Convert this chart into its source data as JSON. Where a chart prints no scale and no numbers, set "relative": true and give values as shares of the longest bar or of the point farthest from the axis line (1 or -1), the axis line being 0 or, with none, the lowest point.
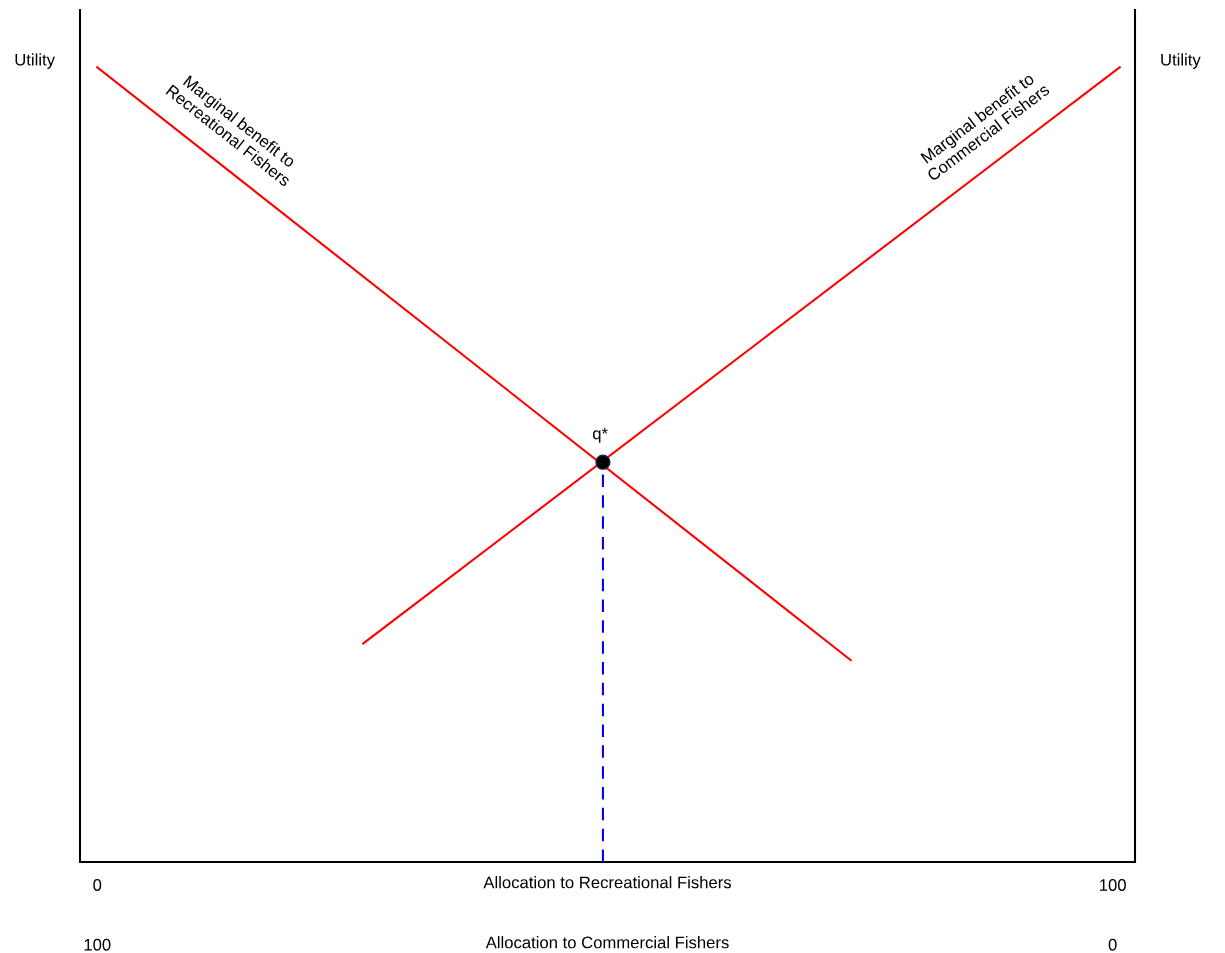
{
  "chart_data": {
    "type": "line",
    "relative": true,
    "xlabel": "Allocation to Recreational Fishers",
    "x2label": "Allocation to Commercial Fishers",
    "ylabel": "Utility",
    "y2label": "Utility",
    "xlim": [
      -1.7,
      102.2
    ],
    "xticks": [
      0,
      100
    ],
    "x2lim": [
      101.7,
      -2.2
    ],
    "x2ticks": [
      100,
      0
    ],
    "series": [
      {
        "name": "Marginal benefit to\nRecreational Fishers",
        "color": "#ff0000",
        "x": [
          0,
          74.2
        ],
        "values": [
          1,
          0.254
        ]
      },
      {
        "name": "Marginal benefit to\nCommercial Fishers",
        "color": "#ff0000",
        "x": [
          26.2,
          100.7
        ],
        "values": [
          0.275,
          1
        ]
      },
      {
        "color": "#0000ff",
        "line_style": "dashed",
        "x": [
          49.8,
          49.8
        ],
        "values": [
          0,
          0.503
        ]
      },
      {
        "type": "scatter",
        "marker": "circle",
        "color": "#000000",
        "x": [
          49.8
        ],
        "values": [
          0.503
        ]
      }
    ],
    "annotations": [
      {
        "text": "q*",
        "x": 49.8,
        "y": 0.503
      }
    ]
  }
}
